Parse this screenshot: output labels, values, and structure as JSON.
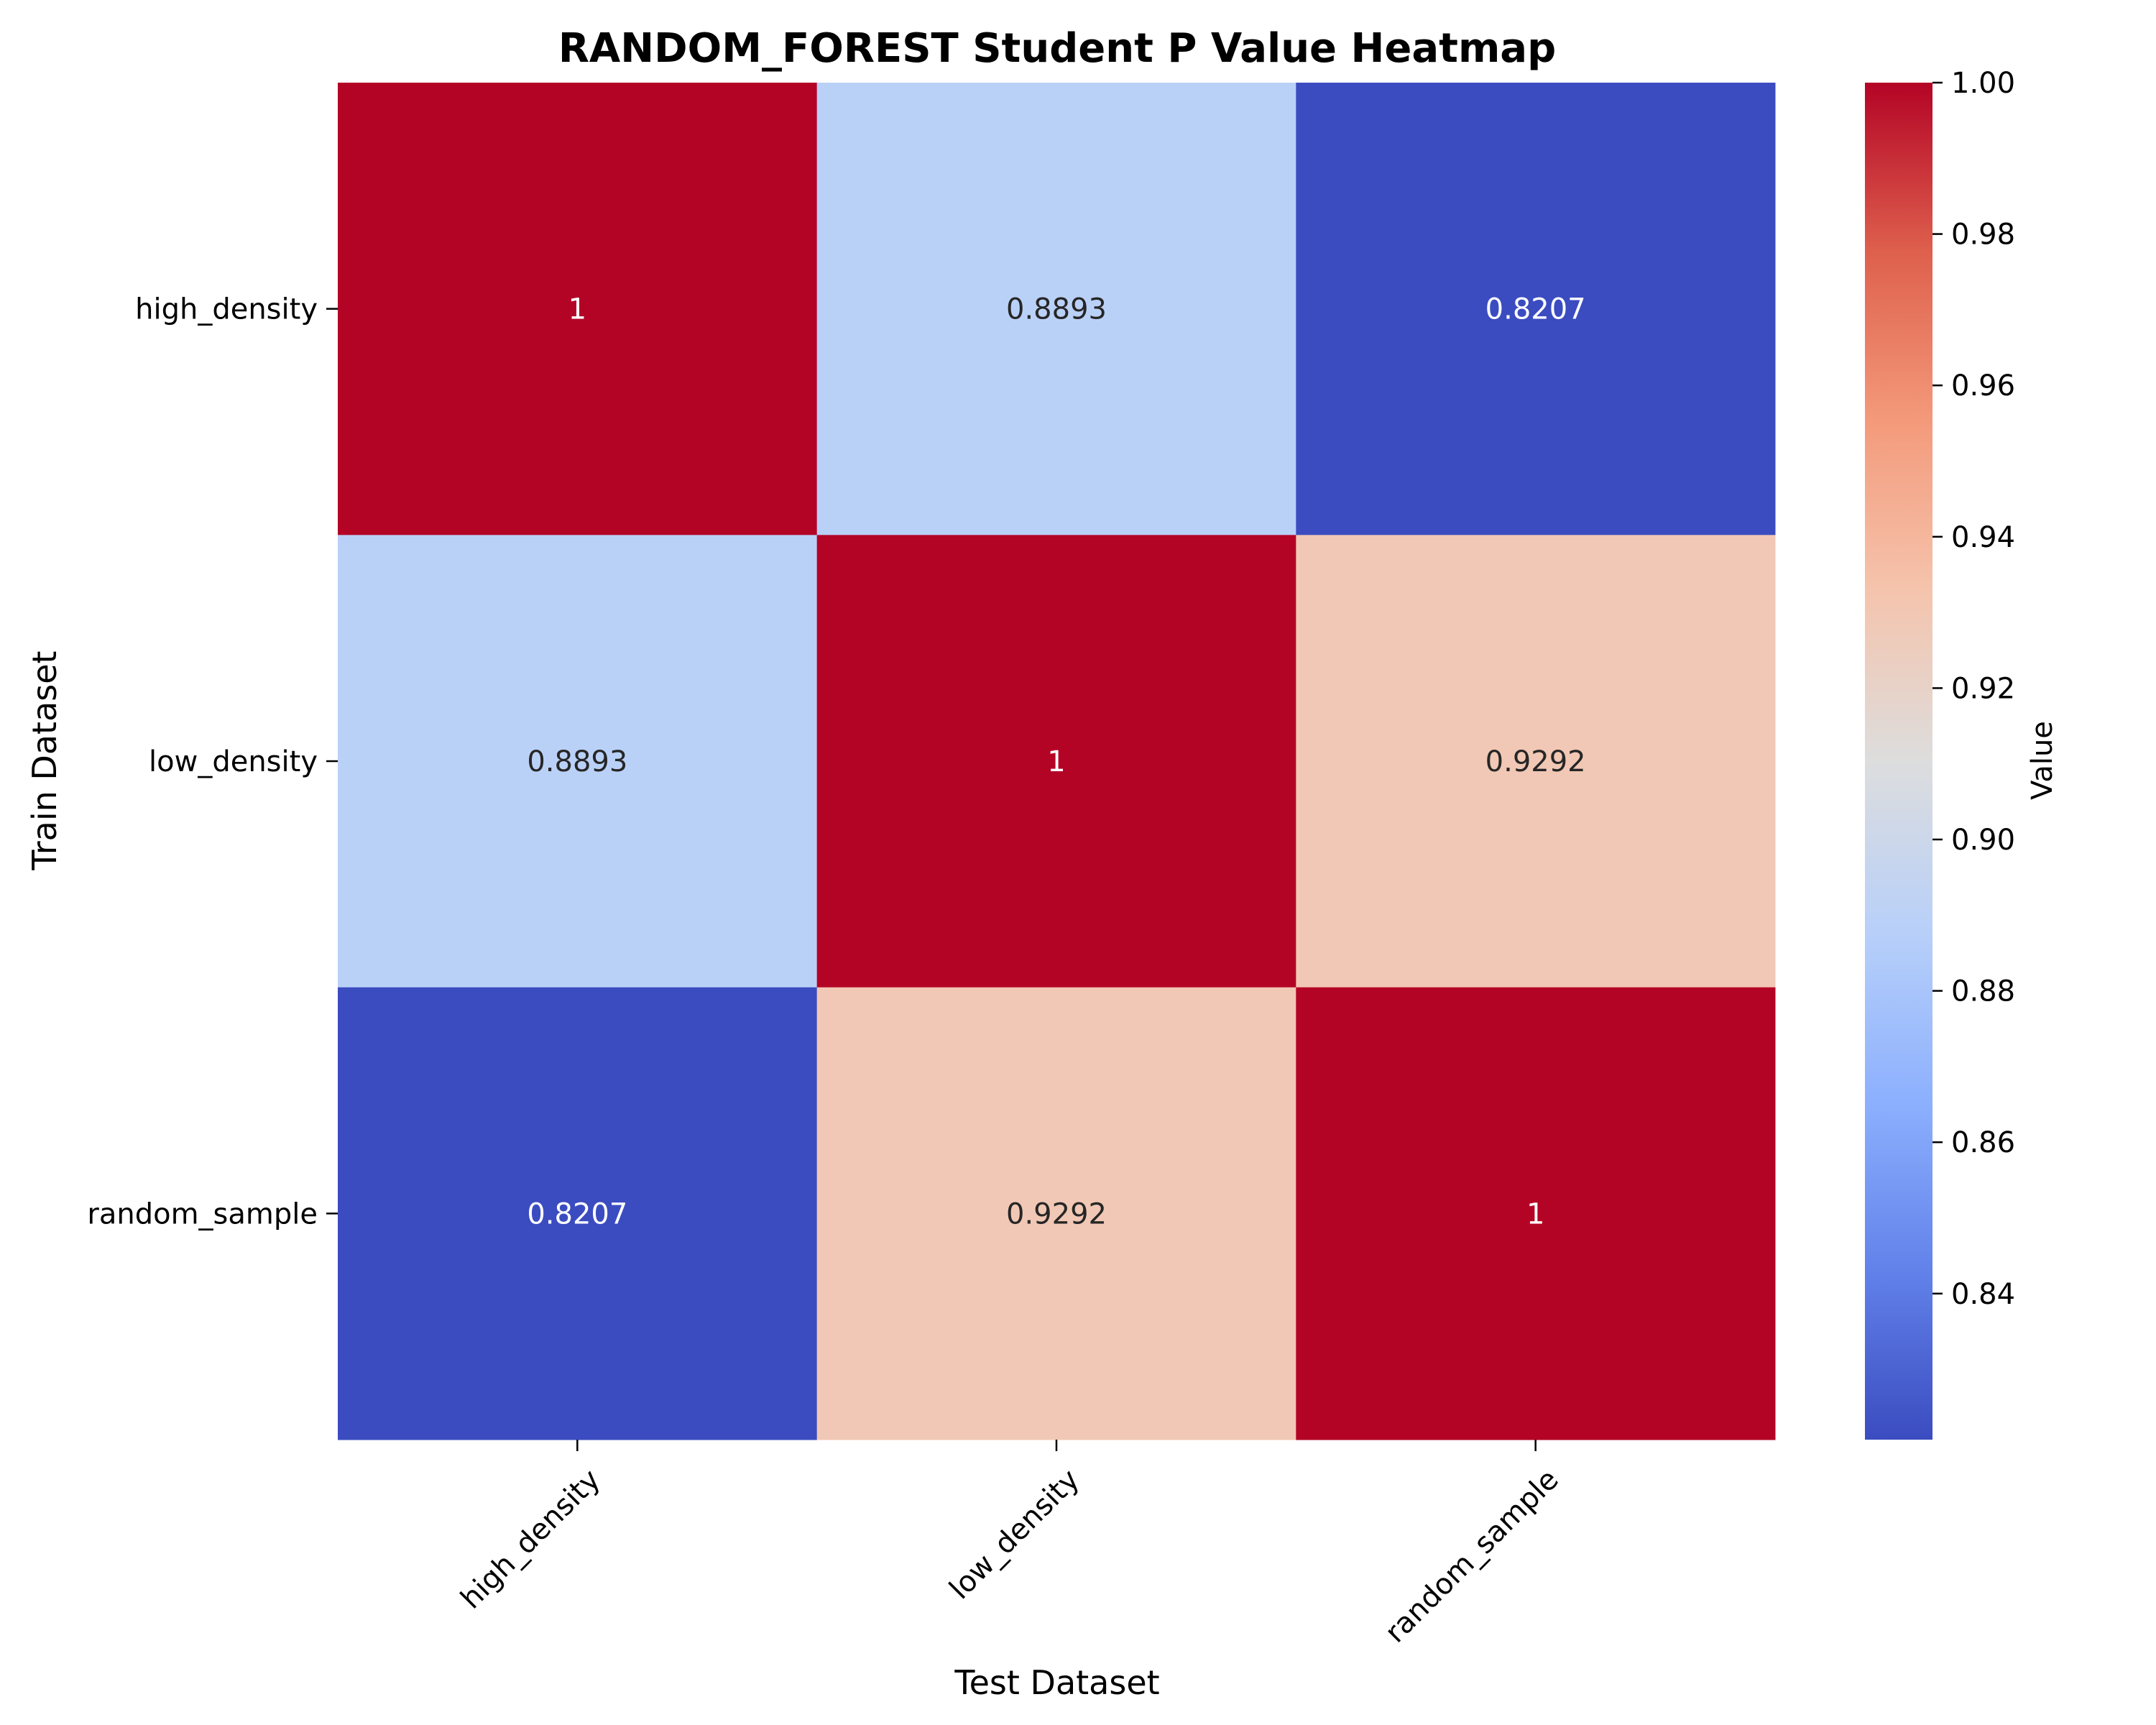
{
  "chart_data": {
    "type": "heatmap",
    "title": "RANDOM_FOREST Student P Value Heatmap",
    "xlabel": "Test Dataset",
    "ylabel": "Train Dataset",
    "x_categories": [
      "high_density",
      "low_density",
      "random_sample"
    ],
    "y_categories": [
      "high_density",
      "low_density",
      "random_sample"
    ],
    "values": [
      [
        1,
        0.8893,
        0.8207
      ],
      [
        0.8893,
        1,
        0.9292
      ],
      [
        0.8207,
        0.9292,
        1
      ]
    ],
    "cell_labels": [
      [
        "1",
        "0.8893",
        "0.8207"
      ],
      [
        "0.8893",
        "1",
        "0.9292"
      ],
      [
        "0.8207",
        "0.9292",
        "1"
      ]
    ],
    "colormap": "coolwarm",
    "colorbar": {
      "label": "Value",
      "vmin": 0.8207,
      "vmax": 1.0,
      "ticks": [
        0.84,
        0.86,
        0.88,
        0.9,
        0.92,
        0.94,
        0.96,
        0.98,
        1.0
      ],
      "tick_labels": [
        "0.84",
        "0.86",
        "0.88",
        "0.90",
        "0.92",
        "0.94",
        "0.96",
        "0.98",
        "1.00"
      ]
    },
    "grid": false
  }
}
